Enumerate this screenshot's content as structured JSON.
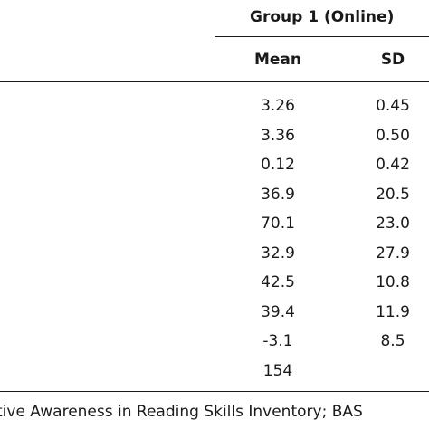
{
  "table": {
    "group_header": "Group 1 (Online)",
    "columns": {
      "mean": "Mean",
      "sd": "SD"
    },
    "rows": [
      {
        "mean": "3.26",
        "sd": "0.45"
      },
      {
        "mean": "3.36",
        "sd": "0.50"
      },
      {
        "mean": "0.12",
        "sd": "0.42"
      },
      {
        "mean": "36.9",
        "sd": "20.5"
      },
      {
        "mean": "70.1",
        "sd": "23.0"
      },
      {
        "mean": "32.9",
        "sd": "27.9"
      },
      {
        "mean": "42.5",
        "sd": "10.8"
      },
      {
        "mean": "39.4",
        "sd": "11.9"
      },
      {
        "mean": "-3.1",
        "sd": "8.5"
      },
      {
        "mean": "154",
        "sd": ""
      }
    ]
  },
  "footnote": "tive Awareness in Reading Skills Inventory; BAS"
}
